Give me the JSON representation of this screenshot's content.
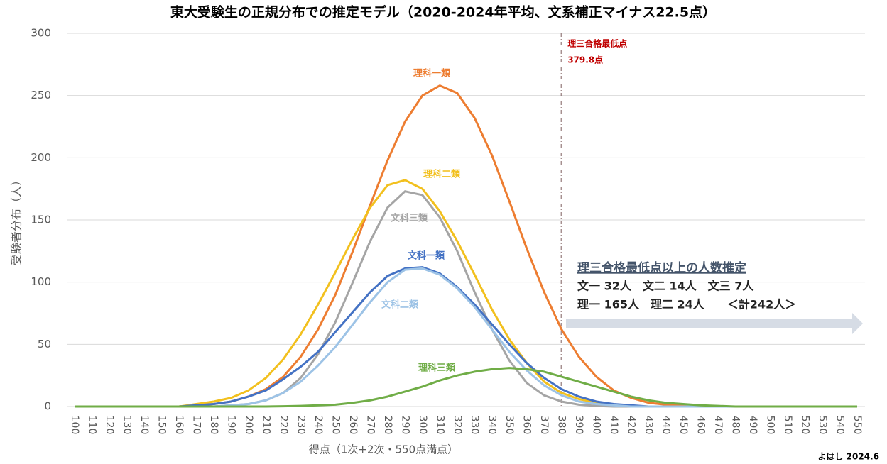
{
  "chart_data": {
    "type": "line",
    "title": "東大受験生の正規分布での推定モデル（2020-2024年平均、文系補正マイナス22.5点）",
    "x_label": "得点（1次+2次・550点満点）",
    "y_label": "受験者分布（人）",
    "x": [
      100,
      110,
      120,
      130,
      140,
      150,
      160,
      170,
      180,
      190,
      200,
      210,
      220,
      230,
      240,
      250,
      260,
      270,
      280,
      290,
      300,
      310,
      320,
      330,
      340,
      350,
      360,
      370,
      380,
      390,
      400,
      410,
      420,
      430,
      440,
      450,
      460,
      470,
      480,
      490,
      500,
      510,
      520,
      530,
      540,
      550
    ],
    "xlim": [
      100,
      550
    ],
    "xticks": [
      100,
      110,
      120,
      130,
      140,
      150,
      160,
      170,
      180,
      190,
      200,
      210,
      220,
      230,
      240,
      250,
      260,
      270,
      280,
      290,
      300,
      310,
      320,
      330,
      340,
      350,
      360,
      370,
      380,
      390,
      400,
      410,
      420,
      430,
      440,
      450,
      460,
      470,
      480,
      490,
      500,
      510,
      520,
      530,
      540,
      550
    ],
    "ylim": [
      0,
      300
    ],
    "yticks": [
      0,
      50,
      100,
      150,
      200,
      250,
      300
    ],
    "grid": true,
    "series": [
      {
        "name": "理科一類",
        "color": "#ed7d31",
        "values": [
          0,
          0,
          0,
          0,
          0,
          0,
          0,
          1,
          2,
          4,
          8,
          14,
          24,
          40,
          62,
          90,
          125,
          162,
          198,
          229,
          250,
          258,
          252,
          232,
          202,
          165,
          127,
          92,
          62,
          40,
          24,
          13,
          7,
          3,
          1.5,
          1,
          0,
          0,
          0,
          0,
          0,
          0,
          0,
          0,
          0,
          0
        ]
      },
      {
        "name": "理科二類",
        "color": "#f2c01e",
        "values": [
          0,
          0,
          0,
          0,
          0,
          0,
          0,
          2,
          4,
          7,
          13,
          23,
          38,
          58,
          82,
          108,
          135,
          160,
          178,
          182,
          175,
          157,
          133,
          106,
          78,
          54,
          35,
          20,
          11,
          6,
          3,
          1,
          0.5,
          0,
          0,
          0,
          0,
          0,
          0,
          0,
          0,
          0,
          0,
          0,
          0,
          0
        ]
      },
      {
        "name": "文科三類",
        "color": "#a5a5a5",
        "values": [
          0,
          0,
          0,
          0,
          0,
          0,
          0,
          0,
          0,
          1,
          2,
          5,
          11,
          23,
          42,
          68,
          100,
          133,
          160,
          173,
          170,
          152,
          125,
          92,
          62,
          37,
          19,
          9,
          4,
          1.5,
          0.5,
          0,
          0,
          0,
          0,
          0,
          0,
          0,
          0,
          0,
          0,
          0,
          0,
          0,
          0,
          0
        ]
      },
      {
        "name": "文科一類",
        "color": "#4472c4",
        "values": [
          0,
          0,
          0,
          0,
          0,
          0,
          0,
          1,
          2,
          4,
          8,
          13,
          22,
          32,
          44,
          60,
          76,
          92,
          105,
          111,
          112,
          107,
          96,
          82,
          66,
          50,
          35,
          23,
          14,
          8,
          4,
          2,
          1,
          0,
          0,
          0,
          0,
          0,
          0,
          0,
          0,
          0,
          0,
          0,
          0,
          0
        ]
      },
      {
        "name": "文科二類",
        "color": "#9dc3e6",
        "values": [
          0,
          0,
          0,
          0,
          0,
          0,
          0,
          0,
          0,
          1,
          2,
          5,
          11,
          20,
          33,
          48,
          66,
          84,
          100,
          110,
          111,
          106,
          95,
          80,
          62,
          44,
          29,
          17,
          9,
          4,
          2,
          1,
          0,
          0,
          0,
          0,
          0,
          0,
          0,
          0,
          0,
          0,
          0,
          0,
          0,
          0
        ]
      },
      {
        "name": "理科三類",
        "color": "#70ad47",
        "values": [
          0,
          0,
          0,
          0,
          0,
          0,
          0,
          0,
          0,
          0,
          0,
          0,
          0.2,
          0.5,
          1,
          1.5,
          3,
          5,
          8,
          12,
          16,
          21,
          25,
          28,
          30,
          31,
          30,
          28,
          24,
          20,
          16,
          12,
          8,
          5,
          3,
          2,
          1,
          0.5,
          0,
          0,
          0,
          0,
          0,
          0,
          0,
          0
        ]
      }
    ],
    "vline": {
      "x": 379.8,
      "label": "理三合格最低点",
      "value_label": "379.8点",
      "color": "#c00000"
    },
    "estimate_box": {
      "title": "理三合格最低点以上の人数推定",
      "lines": [
        "文一 32人　文二 14人　文三 7人",
        "理一 165人　理二 24人　　＜計242人＞"
      ]
    },
    "credit": "よはし 2024.6"
  }
}
